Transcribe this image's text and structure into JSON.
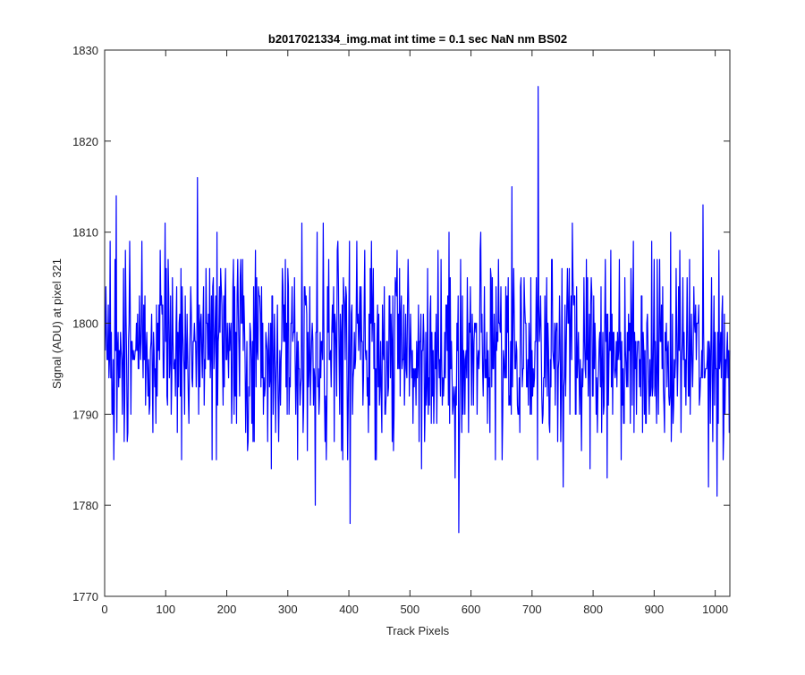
{
  "chart_data": {
    "type": "line",
    "title": "b2017021334_img.mat int time = 0.1 sec  NaN nm BS02",
    "xlabel": "Track Pixels",
    "ylabel": "Signal (ADU) at pixel 321",
    "xlim": [
      0,
      1024
    ],
    "ylim": [
      1770,
      1830
    ],
    "xticks": [
      0,
      100,
      200,
      300,
      400,
      500,
      600,
      700,
      800,
      900,
      1000
    ],
    "yticks": [
      1770,
      1780,
      1790,
      1800,
      1810,
      1820,
      1830
    ],
    "grid": false,
    "line_color": "#0000ff",
    "series": [
      {
        "x_start": 1,
        "x_step": 1,
        "noise_mean": 1797,
        "noise_std": 5.5,
        "notable_points": [
          {
            "x": 19,
            "y": 1814
          },
          {
            "x": 152,
            "y": 1816
          },
          {
            "x": 345,
            "y": 1780
          },
          {
            "x": 402,
            "y": 1778
          },
          {
            "x": 580,
            "y": 1777
          },
          {
            "x": 667,
            "y": 1815
          },
          {
            "x": 710,
            "y": 1826
          },
          {
            "x": 980,
            "y": 1813
          },
          {
            "x": 1003,
            "y": 1781
          }
        ]
      }
    ]
  }
}
